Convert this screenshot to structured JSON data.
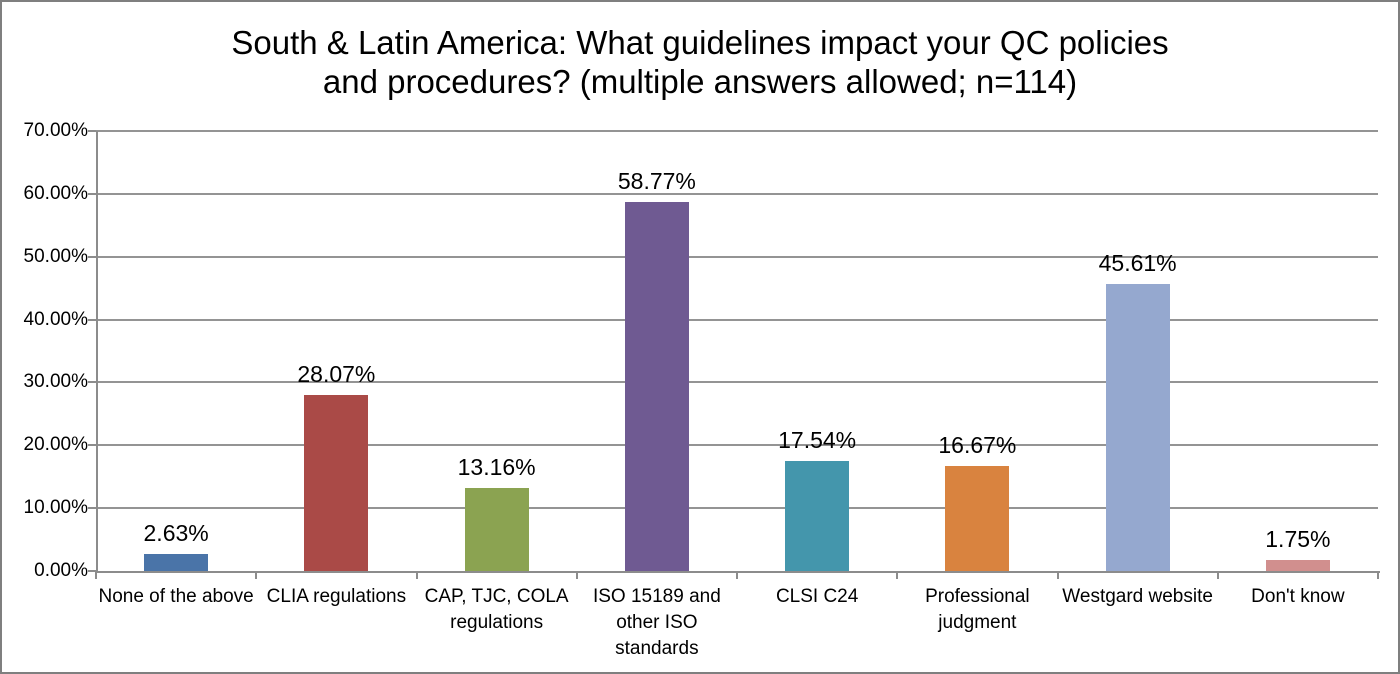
{
  "chart_data": {
    "type": "bar",
    "title": "South & Latin America: What guidelines impact your QC policies and procedures? (multiple answers allowed; n=114)",
    "title_lines": [
      "South & Latin America: What guidelines impact your QC policies",
      "and procedures? (multiple answers allowed; n=114)"
    ],
    "categories": [
      "None of the above",
      "CLIA regulations",
      "CAP, TJC, COLA regulations",
      "ISO 15189 and other ISO standards",
      "CLSI C24",
      "Professional judgment",
      "Westgard website",
      "Don't know"
    ],
    "values": [
      2.63,
      28.07,
      13.16,
      58.77,
      17.54,
      16.67,
      45.61,
      1.75
    ],
    "data_labels": [
      "2.63%",
      "28.07%",
      "13.16%",
      "58.77%",
      "17.54%",
      "16.67%",
      "45.61%",
      "1.75%"
    ],
    "bar_colors": [
      "#4a74a8",
      "#aa4a47",
      "#8ba351",
      "#6f5a92",
      "#4496ac",
      "#d9833f",
      "#95a8cf",
      "#d18f8e"
    ],
    "xlabel": "",
    "ylabel": "",
    "ylim": [
      0,
      70
    ],
    "y_tick_step": 10,
    "y_ticks": [
      "0.00%",
      "10.00%",
      "20.00%",
      "30.00%",
      "40.00%",
      "50.00%",
      "60.00%",
      "70.00%"
    ],
    "grid": true,
    "legend": false
  },
  "style": {
    "gridline_color": "#949494",
    "axis_color": "#8c8c8c",
    "border_color": "#7f7f7f",
    "text_color": "#000000",
    "background": "#ffffff"
  }
}
